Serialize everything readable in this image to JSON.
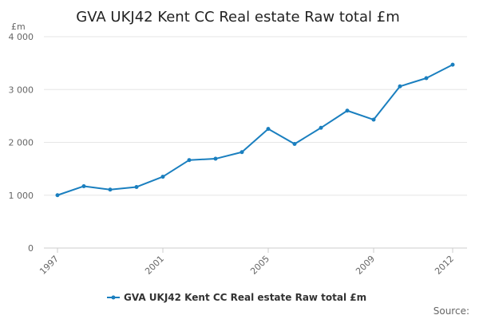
{
  "chart_data": {
    "type": "line",
    "title": "GVA UKJ42 Kent CC Real estate Raw total £m",
    "unit_label": "£m",
    "source_label": "Source:",
    "xlabel": "",
    "ylabel": "",
    "x": [
      1997,
      1998,
      1999,
      2000,
      2001,
      2002,
      2003,
      2004,
      2005,
      2006,
      2007,
      2008,
      2009,
      2010,
      2011,
      2012
    ],
    "x_tick_labels": [
      "1997",
      "2001",
      "2005",
      "2009",
      "2012"
    ],
    "y_tick_labels": [
      "0",
      "1 000",
      "2 000",
      "3 000",
      "4 000"
    ],
    "ylim": [
      0,
      4000
    ],
    "grid": "horizontal",
    "legend_position": "bottom-center",
    "series": [
      {
        "name": "GVA UKJ42 Kent CC Real estate Raw total £m",
        "color": "#1a7fbf",
        "values": [
          1000,
          1170,
          1105,
          1155,
          1350,
          1665,
          1690,
          1815,
          2255,
          1970,
          2275,
          2600,
          2430,
          3060,
          3215,
          3470
        ]
      }
    ]
  }
}
